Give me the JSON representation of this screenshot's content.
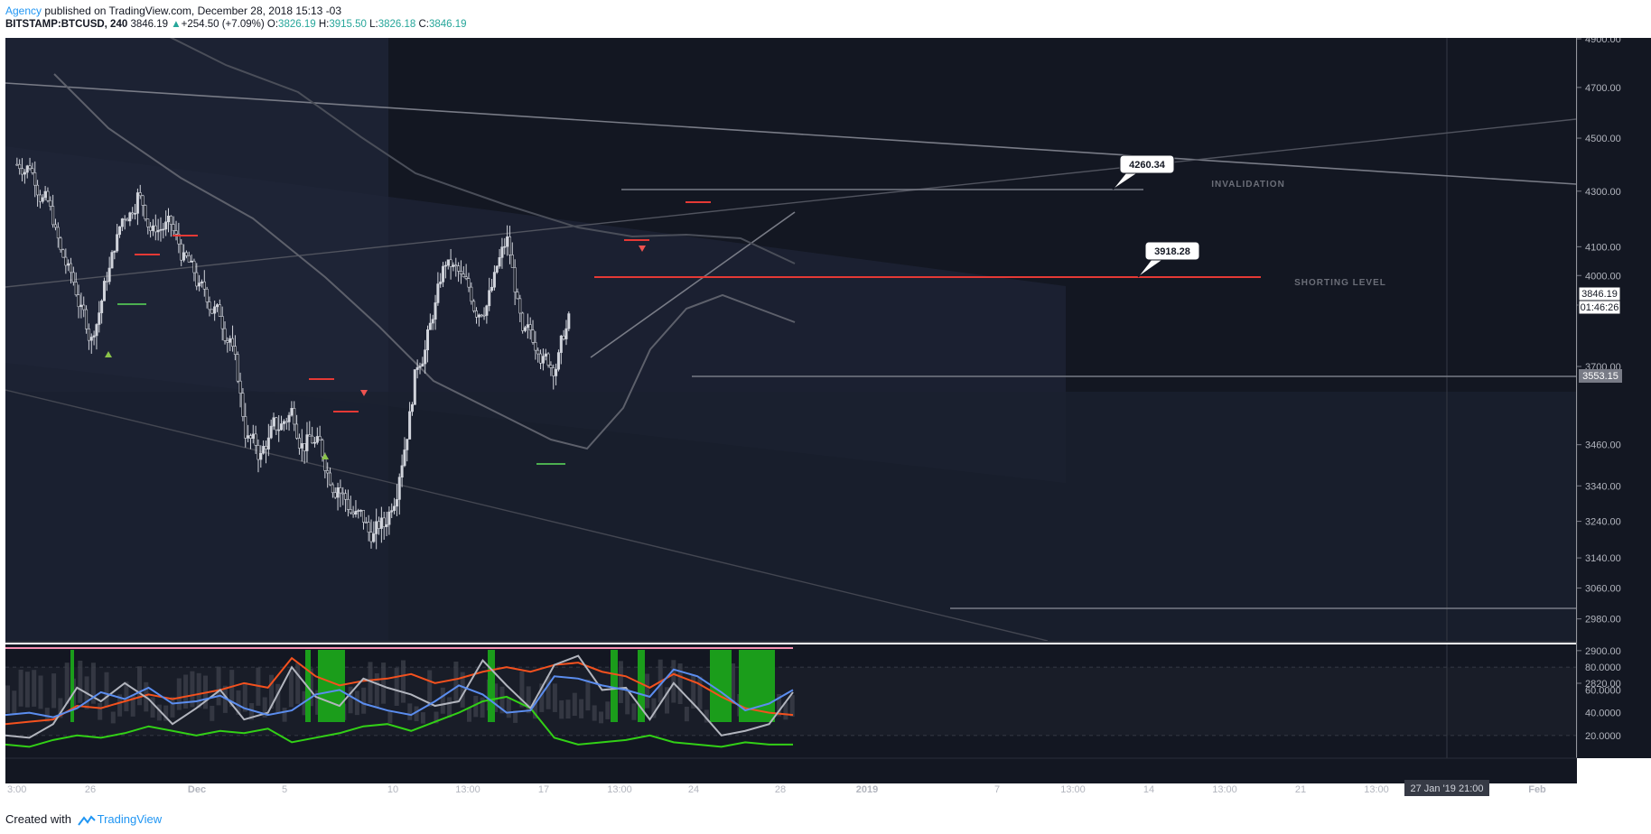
{
  "header": {
    "author": "Agency",
    "published_text": "published on TradingView.com, December 28, 2018 15:13 -03",
    "symbol": "BITSTAMP:BTCUSD, 240",
    "last": "3846.19",
    "change": "+254.50 (+7.09%)",
    "o_label": "O:",
    "o": "3826.19",
    "h_label": "H:",
    "h": "3915.50",
    "l_label": "L:",
    "l": "3826.18",
    "c_label": "C:",
    "c": "3846.19"
  },
  "footer": {
    "created_with": "Created with",
    "brand": "TradingView"
  },
  "colors": {
    "background": "#131722",
    "panel_shade": "#1c2233",
    "candle": "#d1d4dc",
    "red_line": "#e53935",
    "green_mark": "#43a047",
    "stoch_blue": "#5b8def",
    "stoch_orange": "#f4511e",
    "stoch_green": "#32d016",
    "stoch_gray": "#b2b5be",
    "bar_green": "#1b9d1b"
  },
  "chart_data": {
    "type": "line",
    "title": "BITSTAMP:BTCUSD, 240",
    "price_axis": {
      "ticks": [
        "4900.00",
        "4700.00",
        "4500.00",
        "4300.00",
        "4100.00",
        "4000.00",
        "3900.00",
        "3700.00",
        "3460.00",
        "3340.00",
        "3240.00",
        "3140.00",
        "3060.00",
        "2980.00",
        "2900.00",
        "2820.00"
      ],
      "ylim": [
        2780,
        4950
      ],
      "scale": "log",
      "last_price_label": "3846.19",
      "countdown_label": "01:46:26",
      "support_label": "3553.15"
    },
    "time_axis": {
      "ticks": [
        "3:00",
        "26",
        "Dec",
        "5",
        "10",
        "13:00",
        "17",
        "13:00",
        "24",
        "28",
        "2019",
        "7",
        "13:00",
        "14",
        "13:00",
        "21",
        "13:00",
        "27 Jan '19",
        "28",
        "Feb"
      ],
      "crosshair_label": "27 Jan '19   21:00"
    },
    "series": [
      {
        "name": "BTCUSD",
        "x": [
          "Nov 23",
          "Nov 24",
          "Nov 25",
          "Nov 26",
          "Nov 27",
          "Nov 28",
          "Nov 29",
          "Nov 30",
          "Dec 1",
          "Dec 2",
          "Dec 3",
          "Dec 4",
          "Dec 5",
          "Dec 6",
          "Dec 7",
          "Dec 8",
          "Dec 9",
          "Dec 10",
          "Dec 11",
          "Dec 12",
          "Dec 13",
          "Dec 14",
          "Dec 15",
          "Dec 16",
          "Dec 17",
          "Dec 18",
          "Dec 19",
          "Dec 20",
          "Dec 21",
          "Dec 22",
          "Dec 23",
          "Dec 24",
          "Dec 25",
          "Dec 26",
          "Dec 27",
          "Dec 28"
        ],
        "values": [
          4400,
          4270,
          4080,
          3950,
          3780,
          4000,
          4200,
          4280,
          4150,
          4180,
          4050,
          3950,
          3880,
          3790,
          3500,
          3420,
          3520,
          3560,
          3460,
          3440,
          3340,
          3260,
          3210,
          3230,
          3380,
          3660,
          3830,
          4050,
          3990,
          3880,
          3960,
          4120,
          3790,
          3770,
          3700,
          3846
        ]
      }
    ],
    "annotations": [
      {
        "label": "4260.34",
        "text": "INVALIDATION"
      },
      {
        "label": "3918.28",
        "text": "SHORTING LEVEL"
      }
    ],
    "oscillator": {
      "type": "line",
      "ticks": [
        "80.0000",
        "60.0000",
        "40.0000",
        "20.0000"
      ],
      "ylim": [
        0,
        100
      ]
    }
  }
}
